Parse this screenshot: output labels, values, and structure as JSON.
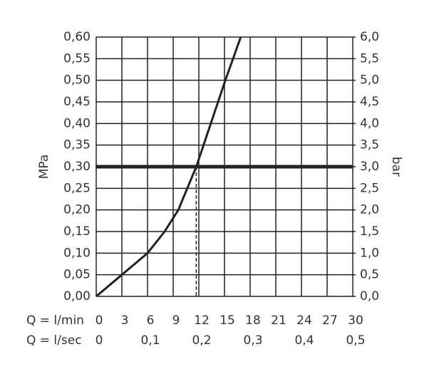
{
  "chart_data": {
    "type": "line",
    "xlabel": "Q = l/min",
    "x2label": "Q = l/sec",
    "ylabel": "MPa",
    "y2label": "bar",
    "x": [
      0,
      3,
      6,
      8,
      9.6,
      11.7,
      13.4,
      15.1,
      16.9
    ],
    "values": [
      0,
      0.05,
      0.1,
      0.15,
      0.2,
      0.3,
      0.4,
      0.5,
      0.6
    ],
    "color": "#222",
    "xlim": [
      0,
      30
    ],
    "xticks": [
      0,
      3,
      6,
      9,
      12,
      15,
      18,
      21,
      24,
      27,
      30
    ],
    "x2lim": [
      0,
      0.5
    ],
    "x2ticks": [
      0,
      {
        "value": 0.1,
        "label": "0,1"
      },
      {
        "value": 0.2,
        "label": "0,2"
      },
      {
        "value": 0.3,
        "label": "0,3"
      },
      {
        "value": 0.4,
        "label": "0,4"
      },
      {
        "value": 0.5,
        "label": "0,5"
      }
    ],
    "ylim": [
      0,
      0.6
    ],
    "yticks": [
      {
        "value": 0,
        "label": "0,00"
      },
      {
        "value": 0.05,
        "label": "0,05"
      },
      {
        "value": 0.1,
        "label": "0,10"
      },
      {
        "value": 0.15,
        "label": "0,15"
      },
      {
        "value": 0.2,
        "label": "0,20"
      },
      {
        "value": 0.25,
        "label": "0,25"
      },
      {
        "value": 0.3,
        "label": "0,30"
      },
      {
        "value": 0.35,
        "label": "0,35"
      },
      {
        "value": 0.4,
        "label": "0,40"
      },
      {
        "value": 0.45,
        "label": "0,45"
      },
      {
        "value": 0.5,
        "label": "0,50"
      },
      {
        "value": 0.55,
        "label": "0,55"
      },
      {
        "value": 0.6,
        "label": "0,60"
      }
    ],
    "y2lim": [
      0,
      6
    ],
    "y2ticks": [
      {
        "value": 0,
        "label": "0,0"
      },
      {
        "value": 0.5,
        "label": "0,5"
      },
      {
        "value": 1,
        "label": "1,0"
      },
      {
        "value": 1.5,
        "label": "1,5"
      },
      {
        "value": 2,
        "label": "2,0"
      },
      {
        "value": 2.5,
        "label": "2,5"
      },
      {
        "value": 3,
        "label": "3,0"
      },
      {
        "value": 3.5,
        "label": "3,5"
      },
      {
        "value": 4,
        "label": "4,0"
      },
      {
        "value": 4.5,
        "label": "4,5"
      },
      {
        "value": 5,
        "label": "5,0"
      },
      {
        "value": 5.5,
        "label": "5,5"
      },
      {
        "value": 6,
        "label": "6,0"
      }
    ],
    "reference_y": 0.3,
    "reference_x": 11.7,
    "grid": true
  }
}
